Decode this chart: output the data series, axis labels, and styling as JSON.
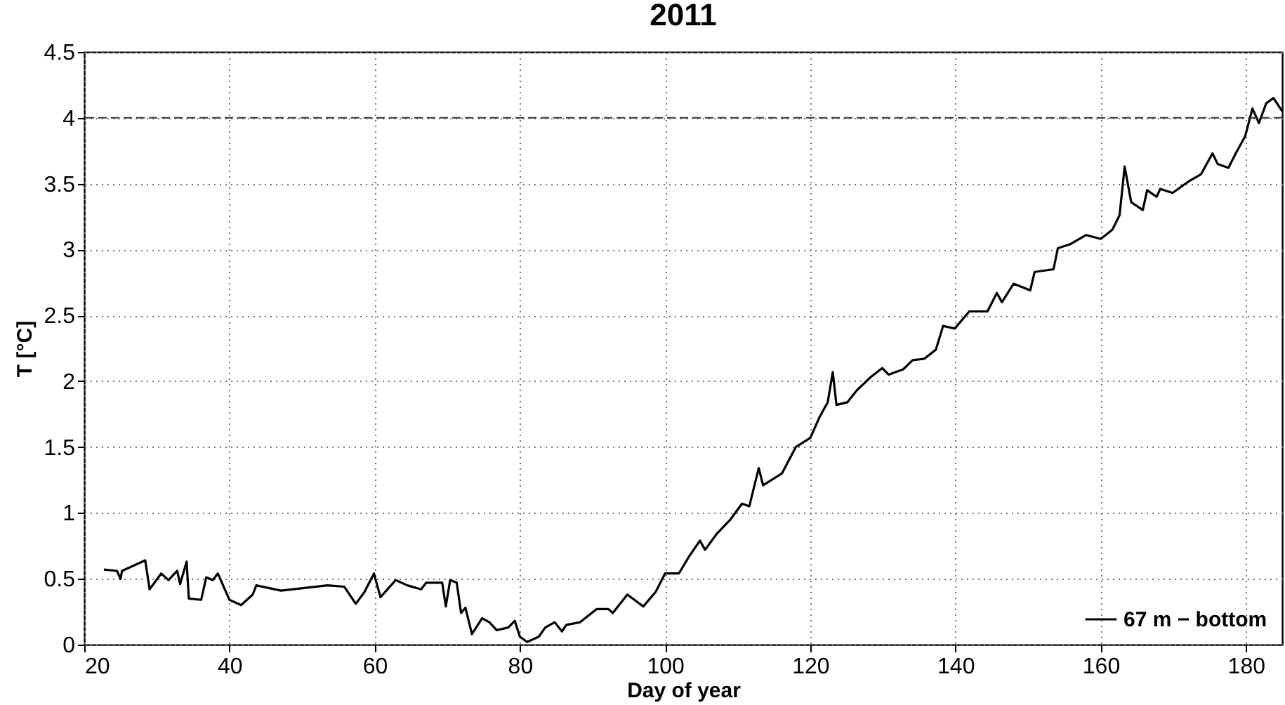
{
  "chart_data": {
    "type": "line",
    "title": "2011",
    "xlabel": "Day of year",
    "ylabel": "T [°C]",
    "xlim": [
      20,
      185
    ],
    "xticks": [
      20,
      40,
      60,
      80,
      100,
      120,
      140,
      160,
      180
    ],
    "ylim": [
      0,
      4.5
    ],
    "yticks": [
      0,
      0.5,
      1,
      1.5,
      2,
      2.5,
      3,
      3.5,
      4,
      4.5
    ],
    "grid": true,
    "legend": "bottom right",
    "line_style": "solid",
    "ref_lines": [
      {
        "axis": "y",
        "value": 4,
        "line_style": "dashed",
        "color": "#333333"
      }
    ],
    "series": [
      {
        "name": "67 m − bottom",
        "color": "#000000",
        "x": [
          22.7,
          24.5,
          25.0,
          25.2,
          28.4,
          29.0,
          30.6,
          31.6,
          32.8,
          33.2,
          34.1,
          34.4,
          36.1,
          36.8,
          37.7,
          38.4,
          40.0,
          41.6,
          43.2,
          43.7,
          47.1,
          53.5,
          55.8,
          57.4,
          58.6,
          59.9,
          60.8,
          62.9,
          64.5,
          66.4,
          67.1,
          69.3,
          69.8,
          70.4,
          71.3,
          71.9,
          72.5,
          73.4,
          74.8,
          75.8,
          76.8,
          78.4,
          79.3,
          80.0,
          81.0,
          82.6,
          83.5,
          84.8,
          85.8,
          86.4,
          88.3,
          90.6,
          92.2,
          92.8,
          94.8,
          97.0,
          98.7,
          100.0,
          101.9,
          103.2,
          104.8,
          105.5,
          107.1,
          109.0,
          110.6,
          111.6,
          112.9,
          113.5,
          116.1,
          118.0,
          120.0,
          121.3,
          122.4,
          123.1,
          123.6,
          125.1,
          126.4,
          128.3,
          129.9,
          130.8,
          132.8,
          134.1,
          135.7,
          137.3,
          138.3,
          139.9,
          141.9,
          144.4,
          145.7,
          146.4,
          148.0,
          150.3,
          150.9,
          153.5,
          154.1,
          155.8,
          158.0,
          160.0,
          161.6,
          162.6,
          163.3,
          164.2,
          165.8,
          166.4,
          167.7,
          168.2,
          169.9,
          172.2,
          173.8,
          175.4,
          176.1,
          177.6,
          178.6,
          179.9,
          180.9,
          181.8,
          182.8,
          183.8,
          185.0
        ],
        "values": [
          0.57,
          0.56,
          0.5,
          0.56,
          0.64,
          0.42,
          0.54,
          0.49,
          0.56,
          0.46,
          0.63,
          0.35,
          0.34,
          0.51,
          0.49,
          0.54,
          0.34,
          0.3,
          0.38,
          0.45,
          0.41,
          0.45,
          0.44,
          0.31,
          0.4,
          0.54,
          0.36,
          0.49,
          0.45,
          0.42,
          0.47,
          0.47,
          0.29,
          0.49,
          0.47,
          0.24,
          0.28,
          0.08,
          0.2,
          0.17,
          0.11,
          0.13,
          0.18,
          0.06,
          0.02,
          0.06,
          0.13,
          0.17,
          0.1,
          0.15,
          0.17,
          0.27,
          0.27,
          0.24,
          0.38,
          0.29,
          0.4,
          0.54,
          0.54,
          0.66,
          0.79,
          0.72,
          0.84,
          0.95,
          1.07,
          1.05,
          1.34,
          1.21,
          1.3,
          1.5,
          1.57,
          1.73,
          1.84,
          2.07,
          1.82,
          1.84,
          1.93,
          2.03,
          2.1,
          2.05,
          2.09,
          2.16,
          2.17,
          2.24,
          2.42,
          2.4,
          2.53,
          2.53,
          2.67,
          2.6,
          2.74,
          2.69,
          2.83,
          2.85,
          3.01,
          3.04,
          3.11,
          3.08,
          3.15,
          3.26,
          3.63,
          3.36,
          3.3,
          3.45,
          3.4,
          3.46,
          3.43,
          3.52,
          3.57,
          3.73,
          3.65,
          3.62,
          3.73,
          3.86,
          4.07,
          3.96,
          4.11,
          4.15,
          4.05
        ]
      }
    ]
  }
}
